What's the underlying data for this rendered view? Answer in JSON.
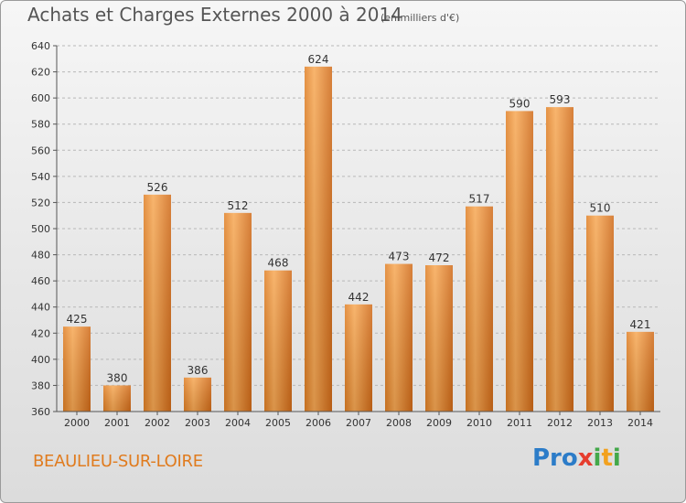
{
  "title": "Achats et Charges Externes 2000 à 2014",
  "subtitle": "(en milliers d'€)",
  "city": "BEAULIEU-SUR-LOIRE",
  "logo": {
    "p1": "Pro",
    "p2": "x",
    "p3": "i",
    "p4": "t",
    "p5": "i"
  },
  "colors": {
    "bar_light": "#f7a854",
    "bar_dark": "#d9741c",
    "grid": "#b8b8b8",
    "city": "#e07b1e"
  },
  "chart_data": {
    "type": "bar",
    "categories": [
      "2000",
      "2001",
      "2002",
      "2003",
      "2004",
      "2005",
      "2006",
      "2007",
      "2008",
      "2009",
      "2010",
      "2011",
      "2012",
      "2013",
      "2014"
    ],
    "values": [
      425,
      380,
      526,
      386,
      512,
      468,
      624,
      442,
      473,
      472,
      517,
      590,
      593,
      510,
      421
    ],
    "ylim": [
      360,
      640
    ],
    "yticks": [
      360,
      380,
      400,
      420,
      440,
      460,
      480,
      500,
      520,
      540,
      560,
      580,
      600,
      620,
      640
    ],
    "grid": true,
    "xlabel": "",
    "ylabel": ""
  }
}
